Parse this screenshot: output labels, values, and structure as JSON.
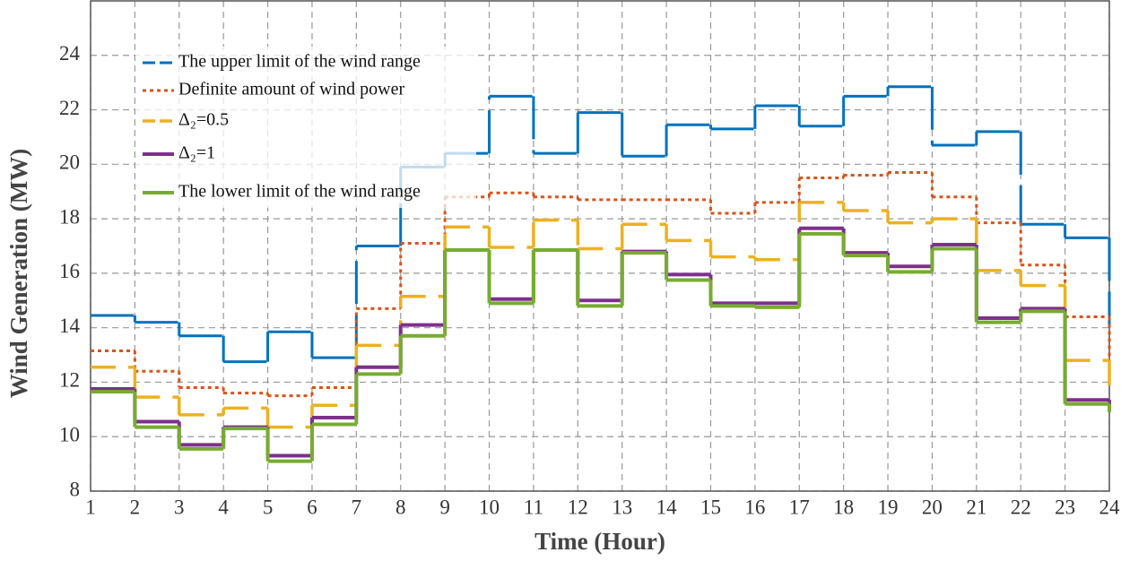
{
  "chart_data": {
    "type": "step",
    "xlabel": "Time (Hour)",
    "ylabel": "Wind Generation (MW)",
    "x": [
      1,
      2,
      3,
      4,
      5,
      6,
      7,
      8,
      9,
      10,
      11,
      12,
      13,
      14,
      15,
      16,
      17,
      18,
      19,
      20,
      21,
      22,
      23,
      24
    ],
    "series": [
      {
        "name": "The upper limit of the wind range",
        "color": "#0072bd",
        "dash": "48 12",
        "values": [
          14.45,
          14.2,
          13.7,
          12.75,
          13.85,
          12.9,
          17.0,
          19.9,
          20.4,
          22.5,
          20.4,
          21.9,
          20.3,
          21.45,
          21.3,
          22.15,
          21.4,
          22.5,
          22.85,
          20.7,
          21.2,
          17.8,
          17.3,
          14.0
        ]
      },
      {
        "name": "Definite amount of wind power",
        "color": "#d95319",
        "dash": "4 4",
        "values": [
          13.15,
          12.4,
          11.8,
          11.6,
          11.5,
          11.8,
          14.7,
          17.1,
          18.8,
          18.95,
          18.8,
          18.7,
          18.7,
          18.7,
          18.2,
          18.6,
          19.5,
          19.6,
          19.7,
          18.8,
          17.85,
          16.3,
          14.4,
          12.0
        ]
      },
      {
        "name": "Δ₂=0.5",
        "color": "#edb120",
        "dash": "28 14",
        "values": [
          12.55,
          11.45,
          10.8,
          11.05,
          10.35,
          11.15,
          13.35,
          15.15,
          17.7,
          16.95,
          17.95,
          16.9,
          17.8,
          17.2,
          16.6,
          16.5,
          18.6,
          18.3,
          17.85,
          18.0,
          16.1,
          15.55,
          12.8,
          11.8
        ]
      },
      {
        "name": "Δ₂=1",
        "color": "#7e2f8e",
        "dash": "none",
        "values": [
          11.75,
          10.55,
          9.7,
          10.35,
          9.3,
          10.7,
          12.55,
          14.1,
          16.85,
          15.05,
          16.85,
          15.0,
          16.8,
          15.95,
          14.9,
          14.9,
          17.65,
          16.75,
          16.25,
          17.05,
          14.35,
          14.7,
          11.35,
          11.0
        ]
      },
      {
        "name": "The lower limit of the wind range",
        "color": "#77ac30",
        "dash": "none",
        "values": [
          11.65,
          10.35,
          9.55,
          10.3,
          9.1,
          10.45,
          12.3,
          13.7,
          16.85,
          14.9,
          16.85,
          14.8,
          16.75,
          15.75,
          14.8,
          14.75,
          17.45,
          16.65,
          16.05,
          16.9,
          14.2,
          14.6,
          11.2,
          10.9
        ]
      }
    ],
    "xlim": [
      1,
      24
    ],
    "xticks": [
      1,
      2,
      3,
      4,
      5,
      6,
      7,
      8,
      9,
      10,
      11,
      12,
      13,
      14,
      15,
      16,
      17,
      18,
      19,
      20,
      21,
      22,
      23,
      24
    ],
    "ylim": [
      8,
      26
    ],
    "yticks": [
      8,
      10,
      12,
      14,
      16,
      18,
      20,
      22,
      24
    ],
    "grid": true,
    "legend": "upper left"
  }
}
